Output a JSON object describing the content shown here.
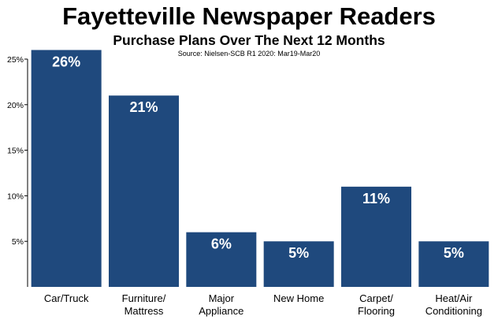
{
  "chart_data": {
    "type": "bar",
    "title": "Fayetteville Newspaper Readers",
    "subtitle": "Purchase Plans Over The Next 12 Months",
    "source": "Source: Nielsen-SCB R1 2020: Mar19-Mar20",
    "categories": [
      [
        "Car/Truck"
      ],
      [
        "Furniture/",
        "Mattress"
      ],
      [
        "Major",
        "Appliance"
      ],
      [
        "New Home"
      ],
      [
        "Carpet/",
        "Flooring"
      ],
      [
        "Heat/Air",
        "Conditioning"
      ]
    ],
    "values": [
      26,
      21,
      6,
      5,
      11,
      5
    ],
    "data_labels": [
      "26%",
      "21%",
      "6%",
      "5%",
      "11%",
      "5%"
    ],
    "y_ticks": [
      5,
      10,
      15,
      20,
      25
    ],
    "y_tick_labels": [
      "5%",
      "10%",
      "15%",
      "20%",
      "25%"
    ],
    "ylim": [
      0,
      25
    ],
    "xlabel": "",
    "ylabel": "",
    "grid": false,
    "bar_color": "#1f497d"
  }
}
